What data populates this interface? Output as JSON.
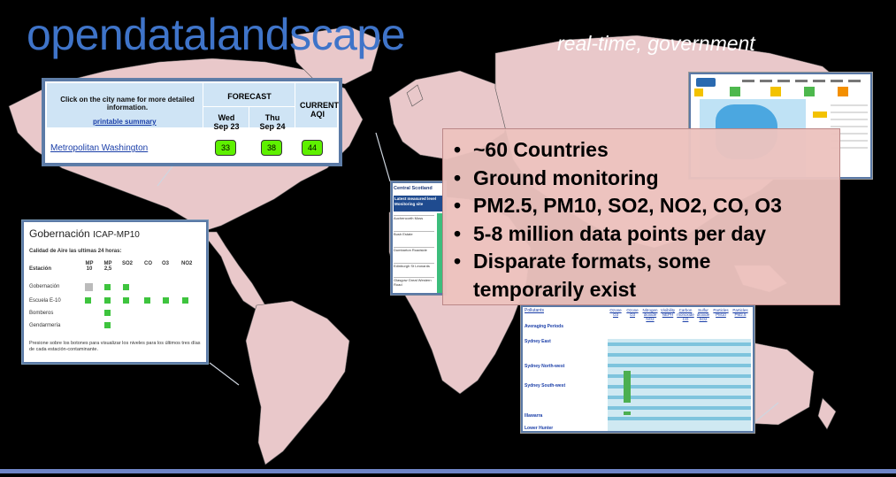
{
  "header": {
    "title": "opendatalandscape",
    "subtitle": "real-time, government"
  },
  "colors": {
    "title": "#3f74c9",
    "map": "#e9c8ca",
    "good_aqi": "#5ef000",
    "bullet_bg": "#ecc3be"
  },
  "bullets": [
    "~60 Countries",
    "Ground monitoring",
    "PM2.5, PM10, SO2, NO2, CO, O3",
    "5-8 million data points per day",
    "Disparate formats, some temporarily exist"
  ],
  "aqi_panel": {
    "instruction": "Click on the city name for more detailed information.",
    "printable_link": "printable summary",
    "forecast_label": "FORECAST",
    "day1": "Wed\nSep 23",
    "day1_a": "Wed",
    "day1_b": "Sep 23",
    "day2_a": "Thu",
    "day2_b": "Sep 24",
    "current_a": "CURRENT",
    "current_b": "AQI",
    "city": "Metropolitan Washington",
    "values": [
      "33",
      "38",
      "44"
    ]
  },
  "gob_panel": {
    "title": "Gobernación",
    "station_code": "ICAP-MP10",
    "subtitle": "Calidad de Aire las ultimas 24 horas:",
    "headers": [
      "Estación",
      "MP 10",
      "MP 2,5",
      "SO2",
      "CO",
      "O3",
      "NO2"
    ],
    "rows": [
      "Gobernación",
      "Escuela E-10",
      "Bomberos",
      "Gendarmería"
    ],
    "note": "Presione sobre los botones para visualizar los niveles para los últimos tres días de cada estación-contaminante."
  },
  "scotland_panel": {
    "title": "Central Scotland",
    "header": "Latest measured level Monitoring site",
    "sites": [
      "Auchencorth Moss",
      "Bush Estate",
      "Dumbarton Roadside",
      "Edinburgh St Leonards",
      "Glasgow Great Western Road"
    ]
  },
  "sydney_panel": {
    "pollutants_label": "Pollutants",
    "averaging_label": "Averaging Periods",
    "columns": [
      "Ozone O3",
      "Ozone O3",
      "Nitrogen dioxide NO2",
      "Visibility NEPH",
      "Carbon monoxide CO",
      "Sulfur dioxide SO2",
      "Particles PM10",
      "Particles PM2.5"
    ],
    "regions": [
      "Sydney East",
      "Sydney North-west",
      "Sydney South-west",
      "Illawarra",
      "Lower Hunter"
    ]
  }
}
